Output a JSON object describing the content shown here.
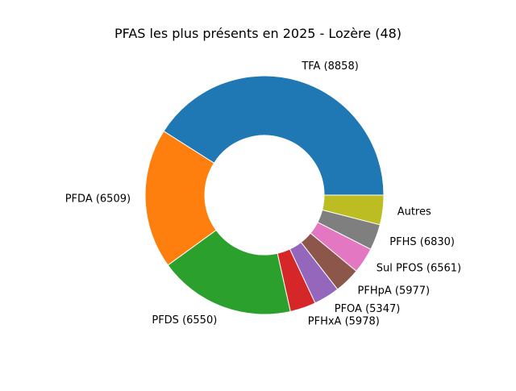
{
  "chart_data": {
    "type": "pie",
    "title": "PFAS les plus présents en 2025 - Lozère (48)",
    "donut": true,
    "start_angle_deg": 0,
    "direction": "counterclockwise",
    "labels": [
      "TFA (8858)",
      "PFDA (6509)",
      "PFDS (6550)",
      "PFHxA (5978)",
      "PFOA (5347)",
      "PFHpA (5977)",
      "Sul PFOS (6561)",
      "PFHS (6830)",
      "Autres"
    ],
    "values": [
      41.0,
      19.0,
      18.5,
      3.5,
      3.5,
      3.5,
      3.5,
      3.5,
      4.0
    ],
    "colors": [
      "#1f77b4",
      "#ff7f0e",
      "#2ca02c",
      "#d62728",
      "#9467bd",
      "#8c564b",
      "#e377c2",
      "#7f7f7f",
      "#bcbd22"
    ]
  }
}
